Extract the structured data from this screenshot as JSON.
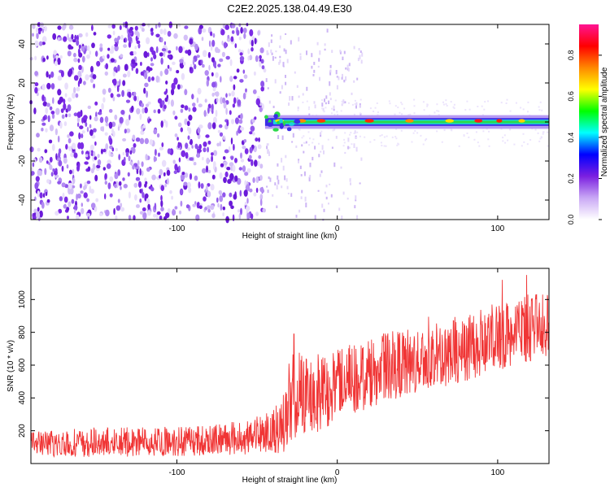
{
  "title": "C2E2.2025.138.04.49.E30",
  "colors": {
    "snr_line": "#f03535",
    "axis": "#000000",
    "background": "#ffffff"
  },
  "chart_data": [
    {
      "type": "heatmap",
      "xlabel": "Height of straight line (km)",
      "ylabel": "Frequency (Hz)",
      "xlim": [
        -191,
        132
      ],
      "ylim": [
        -50,
        50
      ],
      "x_ticks": [
        -100,
        0,
        100
      ],
      "y_ticks": [
        -40,
        -20,
        0,
        20,
        40
      ],
      "grid": false,
      "colorbar": {
        "label": "Normalized spectral amplitude",
        "range": [
          0,
          0.95
        ],
        "ticks": [
          0.0,
          0.2,
          0.4,
          0.6,
          0.8
        ],
        "colormap": [
          "#ffffff",
          "#c9a8f5",
          "#7b1fe0",
          "#0000ff",
          "#00ffff",
          "#00ff00",
          "#ffff00",
          "#ff8800",
          "#ff0000",
          "#ff1493"
        ]
      },
      "description_values": {
        "noise_region_x": [
          -191,
          -45
        ],
        "signal_band_x": [
          -45,
          132
        ],
        "signal_band_center_hz": 0,
        "signal_band_halfwidth_hz": 2
      }
    },
    {
      "type": "line",
      "xlabel": "Height of straight line (km)",
      "ylabel": "SNR (10 * v/v)",
      "xlim": [
        -191,
        132
      ],
      "ylim": [
        0,
        1190
      ],
      "x_ticks": [
        -100,
        0,
        100
      ],
      "y_ticks": [
        200,
        400,
        600,
        800,
        1000
      ],
      "grid": false,
      "series": [
        {
          "envelope": {
            "x": [
              -191,
              -150,
              -100,
              -60,
              -45,
              -35,
              -30,
              -25,
              -15,
              0,
              30,
              60,
              90,
              110,
              132
            ],
            "low": [
              40,
              40,
              45,
              55,
              60,
              60,
              80,
              150,
              180,
              250,
              380,
              450,
              530,
              600,
              650
            ],
            "high": [
              200,
              220,
              230,
              260,
              300,
              400,
              650,
              700,
              700,
              700,
              800,
              850,
              950,
              1020,
              1050
            ],
            "mean": [
              110,
              115,
              125,
              140,
              160,
              200,
              280,
              400,
              430,
              470,
              560,
              620,
              700,
              790,
              840
            ]
          },
          "spikes": [
            {
              "x": -27,
              "y": 790
            },
            {
              "x": 57,
              "y": 895
            },
            {
              "x": 103,
              "y": 1120
            },
            {
              "x": 118,
              "y": 1150
            }
          ]
        }
      ]
    }
  ]
}
